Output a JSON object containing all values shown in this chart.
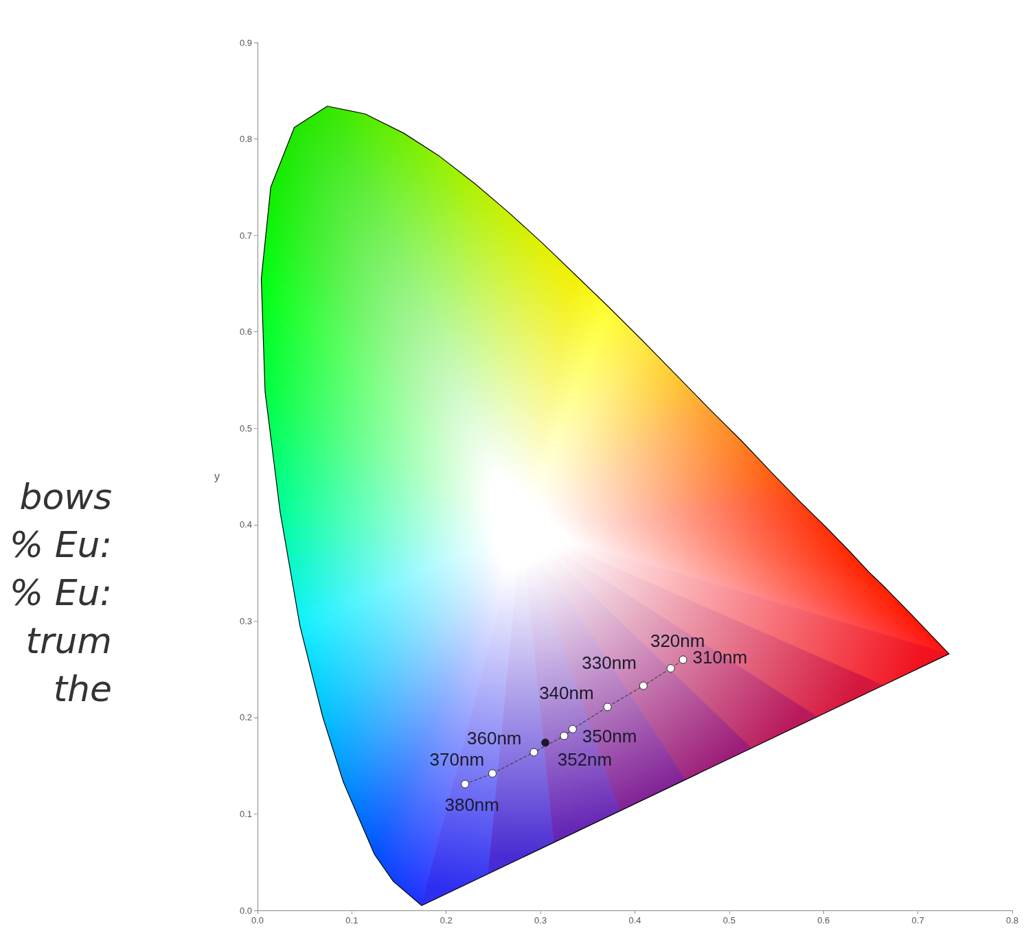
{
  "chart_data": {
    "type": "scatter",
    "ylabel": "y",
    "annotations": [
      "bows",
      "% Eu:",
      "% Eu:",
      "trum",
      "the",
      {
        "text": "380nm",
        "x": 0.22,
        "y": 0.131
      },
      {
        "text": "370nm",
        "x": 0.249,
        "y": 0.142
      },
      {
        "text": "360nm",
        "x": 0.293,
        "y": 0.164
      },
      {
        "text": "352nm",
        "x": 0.325,
        "y": 0.181
      },
      {
        "text": "350nm",
        "x": 0.334,
        "y": 0.188
      },
      {
        "text": "340nm",
        "x": 0.371,
        "y": 0.211
      },
      {
        "text": "330nm",
        "x": 0.409,
        "y": 0.233
      },
      {
        "text": "320nm",
        "x": 0.438,
        "y": 0.251
      },
      {
        "text": "310nm",
        "x": 0.451,
        "y": 0.26
      }
    ],
    "xlim": [
      0,
      0.8
    ],
    "ylim": [
      0,
      0.9
    ],
    "xticks": [
      {
        "value": 0,
        "label": "0.0"
      },
      {
        "value": 0.1,
        "label": "0.1"
      },
      {
        "value": 0.2,
        "label": "0.2"
      },
      {
        "value": 0.3,
        "label": "0.3"
      },
      {
        "value": 0.4,
        "label": "0.4"
      },
      {
        "value": 0.5,
        "label": "0.5"
      },
      {
        "value": 0.6,
        "label": "0.6"
      },
      {
        "value": 0.7,
        "label": "0.7"
      },
      {
        "value": 0.8,
        "label": "0.8"
      }
    ],
    "yticks": [
      {
        "value": 0,
        "label": "0.0"
      },
      {
        "value": 0.1,
        "label": "0.1"
      },
      {
        "value": 0.2,
        "label": "0.2"
      },
      {
        "value": 0.3,
        "label": "0.3"
      },
      {
        "value": 0.4,
        "label": "0.4"
      },
      {
        "value": 0.5,
        "label": "0.5"
      },
      {
        "value": 0.6,
        "label": "0.6"
      },
      {
        "value": 0.7,
        "label": "0.7"
      },
      {
        "value": 0.8,
        "label": "0.8"
      },
      {
        "value": 0.9,
        "label": "0.9"
      }
    ],
    "grid": false,
    "series": [
      {
        "type": "area",
        "color": "#000000",
        "x": [
          0.174,
          0.144,
          0.124,
          0.091,
          0.069,
          0.045,
          0.024,
          0.008,
          0.004,
          0.014,
          0.039,
          0.074,
          0.114,
          0.155,
          0.193,
          0.23,
          0.266,
          0.302,
          0.337,
          0.373,
          0.409,
          0.444,
          0.479,
          0.513,
          0.545,
          0.575,
          0.603,
          0.627,
          0.648,
          0.666,
          0.692,
          0.733
        ],
        "values": [
          0.005,
          0.03,
          0.058,
          0.133,
          0.201,
          0.295,
          0.413,
          0.538,
          0.655,
          0.75,
          0.812,
          0.834,
          0.826,
          0.806,
          0.782,
          0.754,
          0.724,
          0.692,
          0.659,
          0.625,
          0.59,
          0.555,
          0.52,
          0.487,
          0.454,
          0.424,
          0.397,
          0.373,
          0.351,
          0.334,
          0.308,
          0.266
        ],
        "colors": [
          "#2030ff",
          "#1040ff",
          "#0050ff",
          "#0090ff",
          "#00c0ff",
          "#10f0ff",
          "#00ff99",
          "#00ff40",
          "#00ff10",
          "#10ee00",
          "#20e800",
          "#30e800",
          "#50ec00",
          "#70ee00",
          "#90f000",
          "#b0f000",
          "#c8f000",
          "#e0f000",
          "#f2f000",
          "#ffff30",
          "#ffe840",
          "#ffc830",
          "#ffa030",
          "#ff8020",
          "#ff6010",
          "#ff4010",
          "#ff3008",
          "#ff2800",
          "#ff2000",
          "#ff2000",
          "#ff1800",
          "#ff1010"
        ]
      },
      {
        "type": "line",
        "color": "#444444",
        "line_style": "dashed",
        "marker": "circle",
        "x": [
          0.22,
          0.249,
          0.293,
          0.325,
          0.334,
          0.371,
          0.409,
          0.438,
          0.451
        ],
        "values": [
          0.131,
          0.142,
          0.164,
          0.181,
          0.188,
          0.211,
          0.233,
          0.251,
          0.26
        ]
      },
      {
        "color": "#000000",
        "marker": "circle",
        "x": [
          0.305
        ],
        "values": [
          0.174
        ]
      }
    ]
  }
}
